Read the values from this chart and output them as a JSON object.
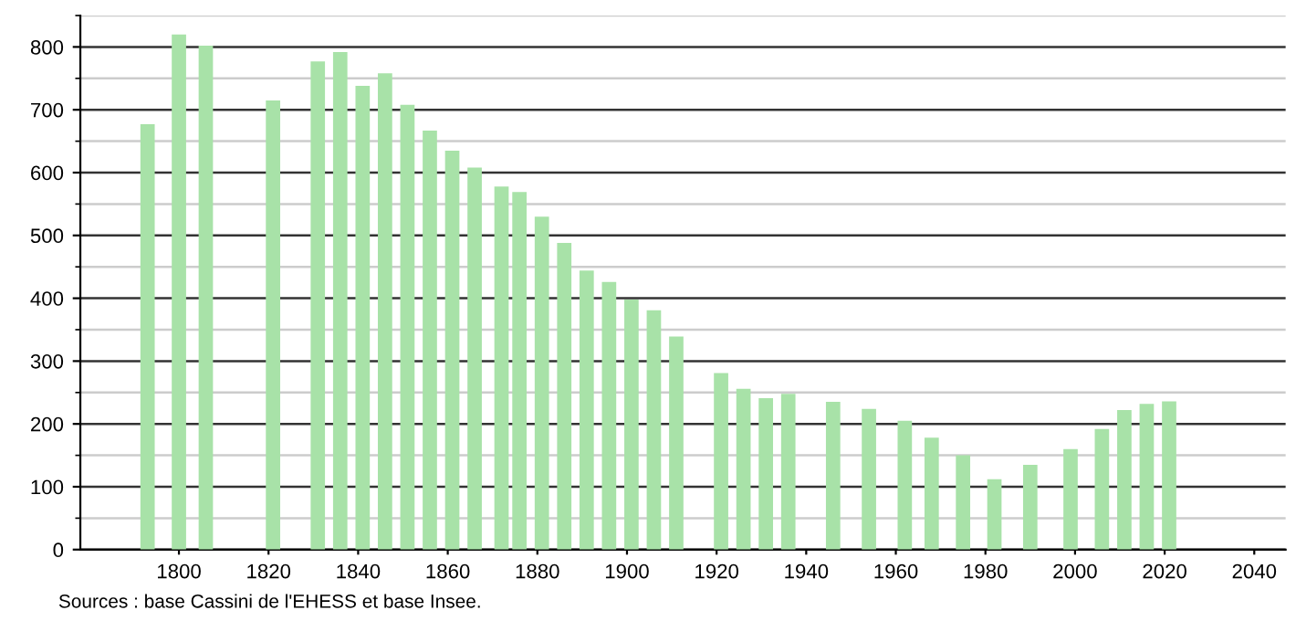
{
  "chart_data": {
    "type": "bar",
    "x": [
      1793,
      1800,
      1806,
      1821,
      1831,
      1836,
      1841,
      1846,
      1851,
      1856,
      1861,
      1866,
      1872,
      1876,
      1881,
      1886,
      1891,
      1896,
      1901,
      1906,
      1911,
      1921,
      1926,
      1931,
      1936,
      1946,
      1954,
      1962,
      1968,
      1975,
      1982,
      1990,
      1999,
      2006,
      2011,
      2016,
      2021
    ],
    "values": [
      677,
      820,
      802,
      715,
      777,
      792,
      738,
      758,
      708,
      667,
      635,
      608,
      578,
      569,
      530,
      488,
      444,
      426,
      398,
      381,
      339,
      281,
      256,
      241,
      248,
      235,
      224,
      205,
      178,
      150,
      112,
      135,
      160,
      192,
      222,
      232,
      236
    ],
    "color": "#a8e2a8",
    "xlim": [
      1778,
      2047
    ],
    "xticks": [
      1800,
      1820,
      1840,
      1860,
      1880,
      1900,
      1920,
      1940,
      1960,
      1980,
      2000,
      2020,
      2040
    ],
    "ylim": [
      0,
      850
    ],
    "yticks": [
      0,
      100,
      200,
      300,
      400,
      500,
      600,
      700,
      800
    ],
    "grid": "y",
    "annotations": [
      "Sources : base Cassini de l'EHESS et base Insee."
    ]
  }
}
